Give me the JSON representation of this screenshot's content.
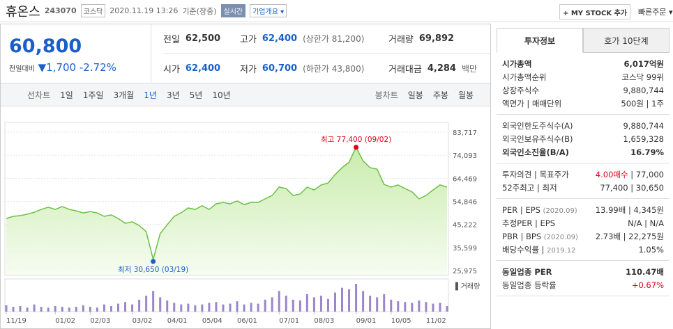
{
  "header": {
    "name": "휴온스",
    "code": "243070",
    "market": "코스닥",
    "datetime": "2020.11.19 13:26",
    "basis": "기준(장중)",
    "realtime": "실시간",
    "company_info": "기업개요 ▾",
    "my_stock": "+ MY STOCK 추가",
    "quick_order": "빠른주문 ▾"
  },
  "quote": {
    "price": "60,800",
    "change_label": "전일대비",
    "change": "▼1,700",
    "change_pct": "-2.72%"
  },
  "stats": [
    {
      "label": "전일",
      "value": "62,500"
    },
    {
      "label": "고가",
      "value": "62,400",
      "note": "(상한가 81,200)",
      "blue": true
    },
    {
      "label": "거래량",
      "value": "69,892"
    },
    {
      "label": "시가",
      "value": "62,400",
      "blue": true
    },
    {
      "label": "저가",
      "value": "60,700",
      "note": "(하한가 43,800)",
      "blue": true
    },
    {
      "label": "거래대금",
      "value": "4,284",
      "note": "백만"
    }
  ],
  "tabs": {
    "line": "선차트",
    "periods": [
      "1일",
      "1주일",
      "3개월",
      "1년",
      "3년",
      "5년",
      "10년"
    ],
    "selected": 3,
    "candle": "봉차트",
    "candle_periods": [
      "일봉",
      "주봉",
      "월봉"
    ]
  },
  "chart_data": {
    "type": "line",
    "color": "#6cbf45",
    "fill": "#d9f2c6",
    "categories": [
      "11/19",
      null,
      null,
      null,
      null,
      null,
      null,
      "01/02",
      null,
      null,
      null,
      null,
      "02/03",
      null,
      null,
      null,
      null,
      null,
      "03/02",
      null,
      null,
      null,
      null,
      "04/01",
      null,
      null,
      null,
      null,
      "05/04",
      null,
      null,
      null,
      null,
      "06/01",
      null,
      null,
      null,
      null,
      null,
      "07/01",
      null,
      null,
      null,
      null,
      "08/03",
      null,
      null,
      null,
      null,
      null,
      "09/01",
      null,
      null,
      null,
      null,
      "10/05",
      null,
      null,
      null,
      null,
      "11/02",
      null,
      null,
      null
    ],
    "values": [
      47700,
      48600,
      48900,
      49500,
      50300,
      51500,
      52400,
      51500,
      52700,
      51500,
      50900,
      50000,
      50600,
      50000,
      48600,
      49200,
      47700,
      45700,
      46300,
      44800,
      42200,
      30650,
      41400,
      45100,
      48600,
      50100,
      52100,
      51500,
      53000,
      51500,
      53800,
      54400,
      53800,
      55000,
      53500,
      54400,
      54400,
      55900,
      57300,
      60800,
      60200,
      57300,
      57900,
      60800,
      59600,
      61700,
      62500,
      66000,
      68900,
      71200,
      77400,
      71700,
      68900,
      68300,
      61900,
      60800,
      61700,
      60200,
      58800,
      55900,
      57300,
      59600,
      61700,
      60800
    ],
    "ylim": [
      25975,
      83717
    ],
    "yticks": [
      {
        "value": 83717,
        "label": "83,717"
      },
      {
        "value": 74093,
        "label": "74,093"
      },
      {
        "value": 64469,
        "label": "64,469"
      },
      {
        "value": 54846,
        "label": "54,846"
      },
      {
        "value": 45222,
        "label": "45,222"
      },
      {
        "value": 35599,
        "label": "35,599"
      },
      {
        "value": 25975,
        "label": "25,975"
      }
    ],
    "high_label": "최고 77,400 (09/02)",
    "high_color": "#e0001b",
    "low_label": "최저 30,650 (03/19)",
    "low_color": "#1a5fc9",
    "volume_label": "▌거래량",
    "volume_color": "#9a86c8",
    "volume": [
      80000,
      60000,
      70000,
      50000,
      90000,
      60000,
      50000,
      70000,
      60000,
      50000,
      60000,
      80000,
      60000,
      50000,
      90000,
      70000,
      100000,
      120000,
      90000,
      150000,
      200000,
      260000,
      180000,
      140000,
      110000,
      90000,
      100000,
      80000,
      90000,
      110000,
      120000,
      90000,
      100000,
      130000,
      90000,
      110000,
      100000,
      150000,
      180000,
      260000,
      200000,
      150000,
      140000,
      220000,
      180000,
      200000,
      160000,
      240000,
      300000,
      280000,
      350000,
      260000,
      200000,
      180000,
      220000,
      150000,
      130000,
      120000,
      110000,
      140000,
      120000,
      100000,
      110000,
      70000
    ]
  },
  "invest": {
    "tabs": [
      "투자정보",
      "호가 10단계"
    ],
    "groups": [
      [
        {
          "label": "시가총액",
          "value": "6,017억원",
          "bold": true
        },
        {
          "label": "시가총액순위",
          "value": "코스닥 99위"
        },
        {
          "label": "상장주식수",
          "value": "9,880,744"
        },
        {
          "label": "액면가 | 매매단위",
          "value": "500원 | 1주"
        }
      ],
      [
        {
          "label": "외국인한도주식수(A)",
          "value": "9,880,744"
        },
        {
          "label": "외국인보유주식수(B)",
          "value": "1,659,328"
        },
        {
          "label": "외국인소진율(B/A)",
          "value": "16.79%",
          "bold": true
        }
      ],
      [
        {
          "label": "투자의견 | 목표주가",
          "value": "4.00매수",
          "value_color": "#e0001b",
          "value2": "| 77,000"
        },
        {
          "label": "52주최고 | 최저",
          "value": "77,400 | 30,650"
        }
      ],
      [
        {
          "label": "PER | EPS",
          "note": "(2020.09)",
          "value": "13.99배 | 4,345원"
        },
        {
          "label": "추정PER | EPS",
          "value": "N/A | N/A"
        },
        {
          "label": "PBR | BPS",
          "note": "(2020.09)",
          "value": "2.73배 | 22,275원"
        },
        {
          "label": "배당수익률 |",
          "note": "2019.12",
          "value": "1.05%"
        }
      ],
      [
        {
          "label": "동일업종 PER",
          "value": "110.47배",
          "bold": true
        },
        {
          "label": "동일업종 등락률",
          "value": "+0.67%",
          "value_color": "#e0001b"
        }
      ]
    ]
  }
}
